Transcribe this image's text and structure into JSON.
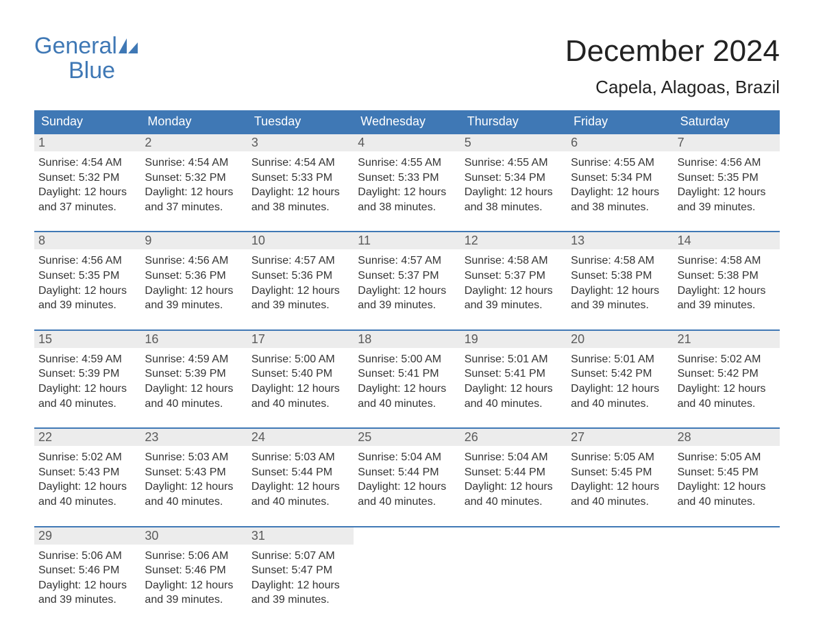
{
  "brand": {
    "line1": "General",
    "line2": "Blue",
    "color": "#3f78b5"
  },
  "header": {
    "month_title": "December 2024",
    "location": "Capela, Alagoas, Brazil",
    "title_color": "#222222",
    "title_fontsize_pt": 33,
    "location_fontsize_pt": 20
  },
  "colors": {
    "weekday_header_bg": "#3f78b5",
    "weekday_header_text": "#ffffff",
    "row_separator": "#3f78b5",
    "daynum_bg": "#ececec",
    "daynum_text": "#5a5a5a",
    "body_text": "#333333",
    "page_bg": "#ffffff"
  },
  "layout": {
    "type": "calendar-table",
    "columns": 7,
    "rows": 5,
    "first_weekday": "Sunday"
  },
  "weekdays": [
    "Sunday",
    "Monday",
    "Tuesday",
    "Wednesday",
    "Thursday",
    "Friday",
    "Saturday"
  ],
  "days": [
    {
      "n": 1,
      "sunrise": "4:54 AM",
      "sunset": "5:32 PM",
      "daylight": "12 hours and 37 minutes."
    },
    {
      "n": 2,
      "sunrise": "4:54 AM",
      "sunset": "5:32 PM",
      "daylight": "12 hours and 37 minutes."
    },
    {
      "n": 3,
      "sunrise": "4:54 AM",
      "sunset": "5:33 PM",
      "daylight": "12 hours and 38 minutes."
    },
    {
      "n": 4,
      "sunrise": "4:55 AM",
      "sunset": "5:33 PM",
      "daylight": "12 hours and 38 minutes."
    },
    {
      "n": 5,
      "sunrise": "4:55 AM",
      "sunset": "5:34 PM",
      "daylight": "12 hours and 38 minutes."
    },
    {
      "n": 6,
      "sunrise": "4:55 AM",
      "sunset": "5:34 PM",
      "daylight": "12 hours and 38 minutes."
    },
    {
      "n": 7,
      "sunrise": "4:56 AM",
      "sunset": "5:35 PM",
      "daylight": "12 hours and 39 minutes."
    },
    {
      "n": 8,
      "sunrise": "4:56 AM",
      "sunset": "5:35 PM",
      "daylight": "12 hours and 39 minutes."
    },
    {
      "n": 9,
      "sunrise": "4:56 AM",
      "sunset": "5:36 PM",
      "daylight": "12 hours and 39 minutes."
    },
    {
      "n": 10,
      "sunrise": "4:57 AM",
      "sunset": "5:36 PM",
      "daylight": "12 hours and 39 minutes."
    },
    {
      "n": 11,
      "sunrise": "4:57 AM",
      "sunset": "5:37 PM",
      "daylight": "12 hours and 39 minutes."
    },
    {
      "n": 12,
      "sunrise": "4:58 AM",
      "sunset": "5:37 PM",
      "daylight": "12 hours and 39 minutes."
    },
    {
      "n": 13,
      "sunrise": "4:58 AM",
      "sunset": "5:38 PM",
      "daylight": "12 hours and 39 minutes."
    },
    {
      "n": 14,
      "sunrise": "4:58 AM",
      "sunset": "5:38 PM",
      "daylight": "12 hours and 39 minutes."
    },
    {
      "n": 15,
      "sunrise": "4:59 AM",
      "sunset": "5:39 PM",
      "daylight": "12 hours and 40 minutes."
    },
    {
      "n": 16,
      "sunrise": "4:59 AM",
      "sunset": "5:39 PM",
      "daylight": "12 hours and 40 minutes."
    },
    {
      "n": 17,
      "sunrise": "5:00 AM",
      "sunset": "5:40 PM",
      "daylight": "12 hours and 40 minutes."
    },
    {
      "n": 18,
      "sunrise": "5:00 AM",
      "sunset": "5:41 PM",
      "daylight": "12 hours and 40 minutes."
    },
    {
      "n": 19,
      "sunrise": "5:01 AM",
      "sunset": "5:41 PM",
      "daylight": "12 hours and 40 minutes."
    },
    {
      "n": 20,
      "sunrise": "5:01 AM",
      "sunset": "5:42 PM",
      "daylight": "12 hours and 40 minutes."
    },
    {
      "n": 21,
      "sunrise": "5:02 AM",
      "sunset": "5:42 PM",
      "daylight": "12 hours and 40 minutes."
    },
    {
      "n": 22,
      "sunrise": "5:02 AM",
      "sunset": "5:43 PM",
      "daylight": "12 hours and 40 minutes."
    },
    {
      "n": 23,
      "sunrise": "5:03 AM",
      "sunset": "5:43 PM",
      "daylight": "12 hours and 40 minutes."
    },
    {
      "n": 24,
      "sunrise": "5:03 AM",
      "sunset": "5:44 PM",
      "daylight": "12 hours and 40 minutes."
    },
    {
      "n": 25,
      "sunrise": "5:04 AM",
      "sunset": "5:44 PM",
      "daylight": "12 hours and 40 minutes."
    },
    {
      "n": 26,
      "sunrise": "5:04 AM",
      "sunset": "5:44 PM",
      "daylight": "12 hours and 40 minutes."
    },
    {
      "n": 27,
      "sunrise": "5:05 AM",
      "sunset": "5:45 PM",
      "daylight": "12 hours and 40 minutes."
    },
    {
      "n": 28,
      "sunrise": "5:05 AM",
      "sunset": "5:45 PM",
      "daylight": "12 hours and 40 minutes."
    },
    {
      "n": 29,
      "sunrise": "5:06 AM",
      "sunset": "5:46 PM",
      "daylight": "12 hours and 39 minutes."
    },
    {
      "n": 30,
      "sunrise": "5:06 AM",
      "sunset": "5:46 PM",
      "daylight": "12 hours and 39 minutes."
    },
    {
      "n": 31,
      "sunrise": "5:07 AM",
      "sunset": "5:47 PM",
      "daylight": "12 hours and 39 minutes."
    }
  ],
  "labels": {
    "sunrise_prefix": "Sunrise: ",
    "sunset_prefix": "Sunset: ",
    "daylight_prefix": "Daylight: "
  }
}
